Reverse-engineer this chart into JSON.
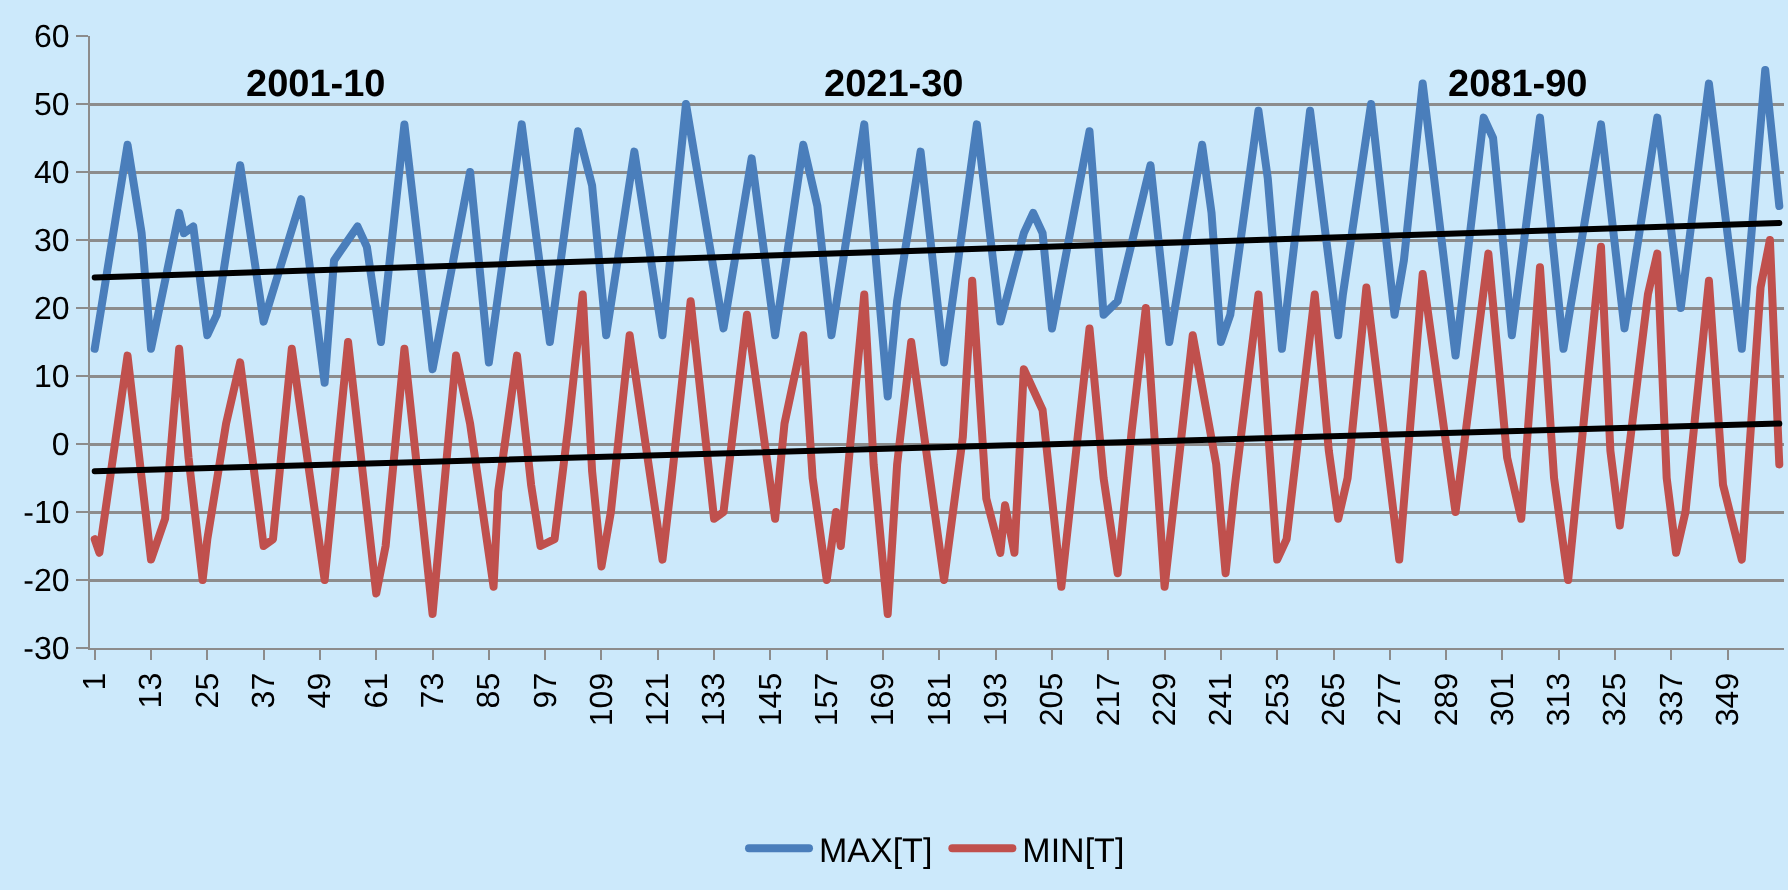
{
  "chart_data": {
    "type": "line",
    "annotations": [
      "2001-10",
      "2021-30",
      "2081-90"
    ],
    "series": [
      {
        "name": "MAX[T]",
        "color": "#4a7ebb",
        "x": [
          1,
          8,
          11,
          13,
          19,
          20,
          22,
          25,
          27,
          32,
          37,
          41,
          45,
          50,
          52,
          57,
          59,
          62,
          67,
          73,
          81,
          85,
          92,
          98,
          104,
          107,
          110,
          116,
          122,
          127,
          135,
          141,
          146,
          152,
          155,
          158,
          165,
          170,
          172,
          177,
          182,
          189,
          194,
          199,
          201,
          203,
          205,
          213,
          216,
          219,
          226,
          230,
          237,
          239,
          241,
          243,
          249,
          251,
          254,
          260,
          266,
          267,
          273,
          278,
          280,
          284,
          291,
          297,
          299,
          303,
          309,
          314,
          322,
          327,
          334,
          339,
          345,
          352,
          357,
          360
        ],
        "values": [
          14,
          44,
          31,
          14,
          34,
          31,
          32,
          16,
          19,
          41,
          18,
          27,
          36,
          9,
          27,
          32,
          29,
          15,
          47,
          11,
          40,
          12,
          47,
          15,
          46,
          38,
          16,
          43,
          16,
          50,
          17,
          42,
          16,
          44,
          35,
          16,
          47,
          7,
          21,
          43,
          12,
          47,
          18,
          31,
          34,
          31,
          17,
          46,
          19,
          21,
          41,
          15,
          44,
          34,
          15,
          19,
          49,
          39,
          14,
          49,
          16,
          22,
          50,
          19,
          27,
          53,
          13,
          48,
          45,
          16,
          48,
          14,
          47,
          17,
          48,
          20,
          53,
          14,
          55,
          35
        ]
      },
      {
        "name": "MIN[T]",
        "color": "#c0504d",
        "x": [
          1,
          2,
          8,
          13,
          16,
          19,
          21,
          24,
          25,
          29,
          32,
          37,
          39,
          43,
          50,
          55,
          61,
          63,
          67,
          73,
          78,
          81,
          86,
          87,
          91,
          94,
          96,
          99,
          102,
          105,
          107,
          109,
          111,
          115,
          122,
          124,
          128,
          133,
          135,
          140,
          146,
          148,
          152,
          154,
          157,
          159,
          160,
          165,
          167,
          170,
          172,
          175,
          182,
          186,
          188,
          191,
          194,
          195,
          197,
          199,
          203,
          207,
          213,
          216,
          219,
          222,
          225,
          229,
          235,
          240,
          242,
          244,
          249,
          253,
          255,
          261,
          264,
          266,
          268,
          272,
          279,
          284,
          291,
          298,
          302,
          305,
          309,
          312,
          315,
          322,
          324,
          326,
          332,
          334,
          336,
          338,
          340,
          345,
          348,
          352,
          356,
          358,
          360
        ],
        "values": [
          -14,
          -16,
          13,
          -17,
          -11,
          14,
          -2,
          -20,
          -14,
          3,
          12,
          -15,
          -14,
          14,
          -20,
          15,
          -22,
          -15,
          14,
          -25,
          13,
          3,
          -21,
          -7,
          13,
          -6,
          -15,
          -14,
          3,
          22,
          -4,
          -18,
          -10,
          16,
          -17,
          -5,
          21,
          -11,
          -10,
          19,
          -11,
          3,
          16,
          -5,
          -20,
          -10,
          -15,
          22,
          -3,
          -25,
          -3,
          15,
          -20,
          1,
          24,
          -8,
          -16,
          -9,
          -16,
          11,
          5,
          -21,
          17,
          -5,
          -19,
          2,
          20,
          -21,
          16,
          -3,
          -19,
          -6,
          22,
          -17,
          -14,
          22,
          -1,
          -11,
          -5,
          23,
          -17,
          25,
          -10,
          28,
          -2,
          -11,
          26,
          -5,
          -20,
          29,
          -1,
          -12,
          22,
          28,
          -5,
          -16,
          -10,
          24,
          -6,
          -17,
          23,
          30,
          -3
        ]
      },
      {
        "type": "line",
        "color": "#000000",
        "x": [
          1,
          360
        ],
        "values": [
          24.5,
          32.5
        ]
      },
      {
        "type": "line",
        "color": "#000000",
        "x": [
          1,
          360
        ],
        "values": [
          -4,
          3
        ]
      }
    ],
    "xlim": [
      0,
      361
    ],
    "xticks": [
      1,
      13,
      25,
      37,
      49,
      61,
      73,
      85,
      97,
      109,
      121,
      133,
      145,
      157,
      169,
      181,
      193,
      205,
      217,
      229,
      241,
      253,
      265,
      277,
      289,
      301,
      313,
      325,
      337,
      349
    ],
    "ylim": [
      -30,
      60
    ],
    "yticks": [
      -30,
      -20,
      -10,
      0,
      10,
      20,
      30,
      40,
      50,
      60
    ],
    "grid": "y",
    "legend": "bottom",
    "marker": "none",
    "line_style": "solid"
  }
}
